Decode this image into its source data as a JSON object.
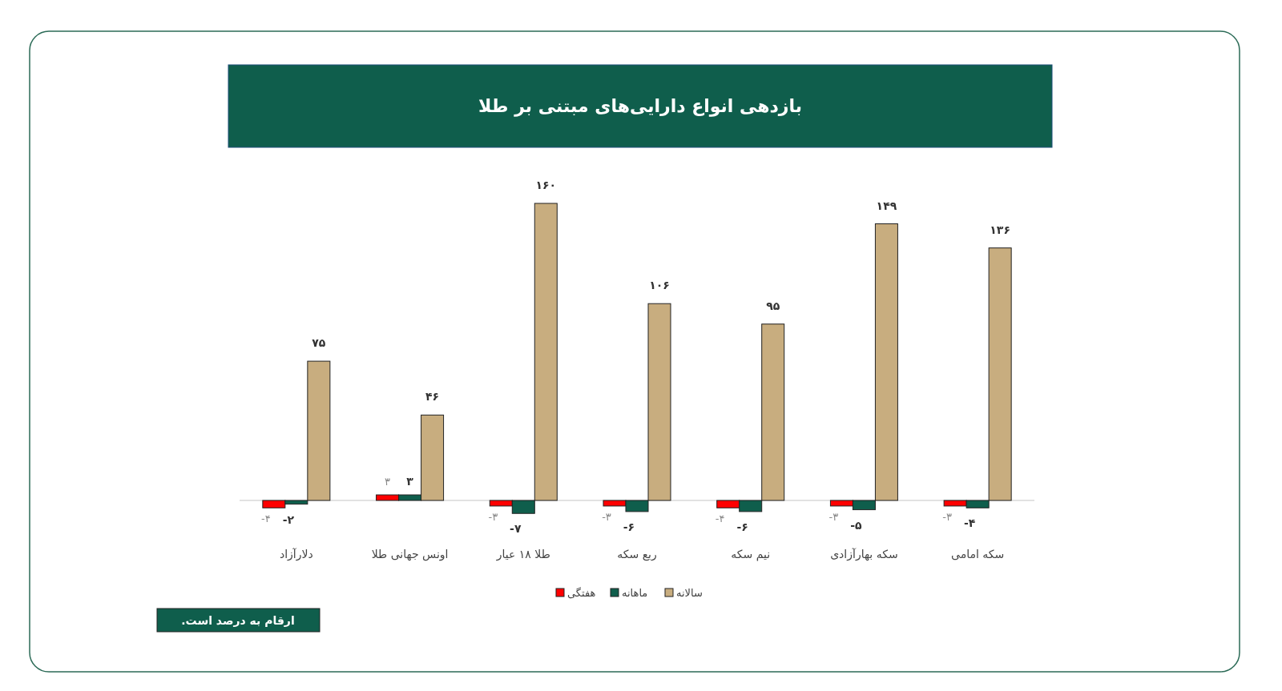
{
  "chart_data": {
    "type": "bar",
    "title": "بازدهی انواع دارایی‌های مبتنی بر طلا",
    "categories": [
      "دلارآزاد",
      "اونس جهانی طلا",
      "طلا ۱۸ عیار",
      "ربع سکه",
      "نیم سکه",
      "سکه بهارآزادی",
      "سکه امامی"
    ],
    "series": [
      {
        "name": "هفتگی",
        "color": "#ff0000",
        "values": [
          -4,
          3,
          -3,
          -3,
          -4,
          -3,
          -3
        ],
        "value_labels": [
          "-۴",
          "۳",
          "-۳",
          "-۳",
          "-۴",
          "-۳",
          "-۳"
        ]
      },
      {
        "name": "ماهانه",
        "color": "#0f5e4c",
        "values": [
          -2,
          3,
          -7,
          -6,
          -6,
          -5,
          -4
        ],
        "value_labels": [
          "-۲",
          "۳",
          "-۷",
          "-۶",
          "-۶",
          "-۵",
          "-۴"
        ]
      },
      {
        "name": "سالانه",
        "color": "#c8ad7f",
        "values": [
          75,
          46,
          160,
          106,
          95,
          149,
          136
        ],
        "value_labels": [
          "۷۵",
          "۴۶",
          "۱۶۰",
          "۱۰۶",
          "۹۵",
          "۱۴۹",
          "۱۳۶"
        ]
      }
    ],
    "legend": "bottom",
    "annotations": [
      "ارقام به درصد است."
    ]
  }
}
